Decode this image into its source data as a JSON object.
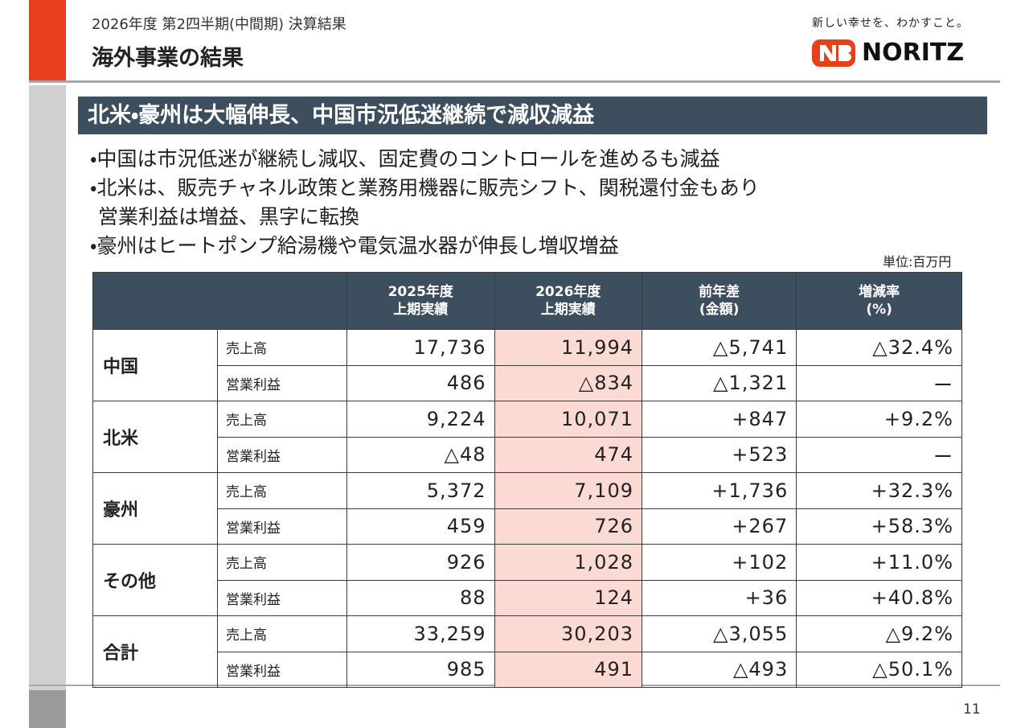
{
  "header": {
    "subtitle": "2026年度 第2四半期(中間期) 決算結果",
    "title": "海外事業の結果"
  },
  "logo": {
    "tagline": "新しい幸せを、わかすこと。",
    "name": "NORITZ"
  },
  "banner": "北米・豪州は大幅伸長、中国市況低迷継続で減収減益",
  "bullets": [
    {
      "text": "・中国は市況低迷が継続し減収、固定費のコントロールを進めるも減益",
      "indent": false
    },
    {
      "text": "・北米は、販売チャネル政策と業務用機器に販売シフト、関税還付金もあり",
      "indent": false
    },
    {
      "text": "営業利益は増益、黒字に転換",
      "indent": true
    },
    {
      "text": "・豪州はヒートポンプ給湯機や電気温水器が伸長し増収増益",
      "indent": false
    }
  ],
  "unit": "単位:百万円",
  "table": {
    "columns": [
      [
        "2025年度",
        "上期実績"
      ],
      [
        "2026年度",
        "上期実績"
      ],
      [
        "前年差",
        "(金額)"
      ],
      [
        "増減率",
        "(%)"
      ]
    ],
    "groups": [
      {
        "region": "中国",
        "rows": [
          {
            "item": "売上高",
            "values": [
              "17,736",
              "11,994",
              "△5,741",
              "△32.4%"
            ]
          },
          {
            "item": "営業利益",
            "values": [
              "486",
              "△834",
              "△1,321",
              "ー"
            ]
          }
        ]
      },
      {
        "region": "北米",
        "rows": [
          {
            "item": "売上高",
            "values": [
              "9,224",
              "10,071",
              "+847",
              "+9.2%"
            ]
          },
          {
            "item": "営業利益",
            "values": [
              "△48",
              "474",
              "+523",
              "ー"
            ]
          }
        ]
      },
      {
        "region": "豪州",
        "rows": [
          {
            "item": "売上高",
            "values": [
              "5,372",
              "7,109",
              "+1,736",
              "+32.3%"
            ]
          },
          {
            "item": "営業利益",
            "values": [
              "459",
              "726",
              "+267",
              "+58.3%"
            ]
          }
        ]
      },
      {
        "region": "その他",
        "rows": [
          {
            "item": "売上高",
            "values": [
              "926",
              "1,028",
              "+102",
              "+11.0%"
            ]
          },
          {
            "item": "営業利益",
            "values": [
              "88",
              "124",
              "+36",
              "+40.8%"
            ]
          }
        ]
      },
      {
        "region": "合計",
        "rows": [
          {
            "item": "売上高",
            "values": [
              "33,259",
              "30,203",
              "△3,055",
              "△9.2%"
            ]
          },
          {
            "item": "営業利益",
            "values": [
              "985",
              "491",
              "△493",
              "△50.1%"
            ]
          }
        ]
      }
    ]
  },
  "page_number": "11"
}
